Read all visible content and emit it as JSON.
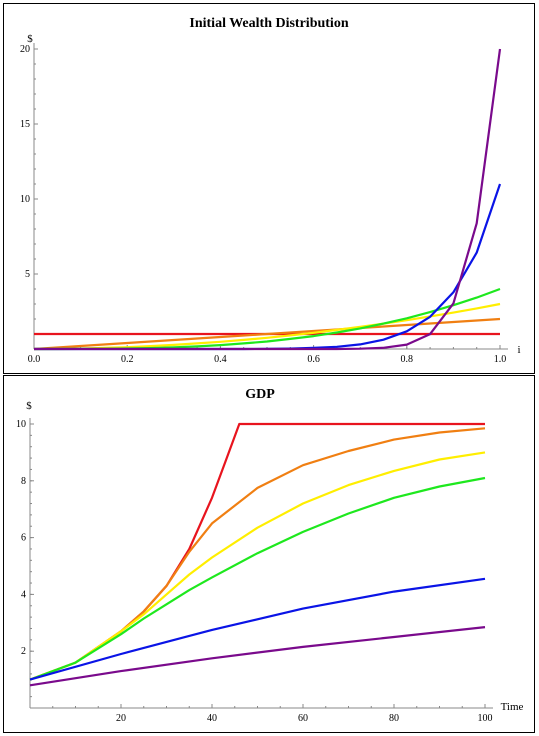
{
  "chart_data": [
    {
      "type": "line",
      "title": "Initial Wealth Distribution",
      "xlabel": "i",
      "ylabel": "$",
      "xlim": [
        0,
        1
      ],
      "ylim": [
        0,
        20
      ],
      "xticks": [
        "0.0",
        "0.2",
        "0.4",
        "0.6",
        "0.8",
        "1.0"
      ],
      "yticks": [
        "5",
        "10",
        "15",
        "20"
      ],
      "grid": false,
      "x": [
        0.0,
        0.05,
        0.1,
        0.15,
        0.2,
        0.25,
        0.3,
        0.35,
        0.4,
        0.45,
        0.5,
        0.55,
        0.6,
        0.65,
        0.7,
        0.75,
        0.8,
        0.85,
        0.9,
        0.95,
        1.0
      ],
      "series": [
        {
          "color": "#e8141e",
          "values": [
            1,
            1,
            1,
            1,
            1,
            1,
            1,
            1,
            1,
            1,
            1,
            1,
            1,
            1,
            1,
            1,
            1,
            1,
            1,
            1,
            1
          ]
        },
        {
          "color": "#f07f12",
          "values": [
            0,
            0.1,
            0.2,
            0.3,
            0.4,
            0.5,
            0.6,
            0.7,
            0.8,
            0.9,
            1.0,
            1.1,
            1.2,
            1.3,
            1.4,
            1.5,
            1.6,
            1.7,
            1.8,
            1.9,
            2.0
          ]
        },
        {
          "color": "#ffee00",
          "values": [
            0,
            0.008,
            0.03,
            0.07,
            0.12,
            0.19,
            0.27,
            0.37,
            0.48,
            0.61,
            0.75,
            0.91,
            1.08,
            1.27,
            1.47,
            1.69,
            1.92,
            2.17,
            2.43,
            2.71,
            3.0
          ]
        },
        {
          "color": "#1ee81e",
          "values": [
            0,
            0.0005,
            0.004,
            0.014,
            0.032,
            0.06,
            0.11,
            0.17,
            0.26,
            0.37,
            0.5,
            0.67,
            0.86,
            1.1,
            1.37,
            1.69,
            2.05,
            2.46,
            2.92,
            3.43,
            4.0
          ]
        },
        {
          "color": "#0a14e6",
          "values": [
            0,
            0,
            0,
            0,
            0,
            0,
            0,
            0,
            0.001,
            0.003,
            0.01,
            0.03,
            0.07,
            0.15,
            0.31,
            0.62,
            1.18,
            2.15,
            3.78,
            6.43,
            11.0
          ]
        },
        {
          "color": "#7a0a8c",
          "values": [
            0,
            0,
            0,
            0,
            0,
            0,
            0,
            0,
            0,
            0,
            0,
            0,
            0,
            0,
            0.02,
            0.08,
            0.29,
            0.99,
            3.04,
            8.38,
            20.0
          ]
        }
      ]
    },
    {
      "type": "line",
      "title": "GDP",
      "xlabel": "Time",
      "ylabel": "$",
      "xlim": [
        0,
        100
      ],
      "ylim": [
        0,
        10
      ],
      "xticks": [
        "20",
        "40",
        "60",
        "80",
        "100"
      ],
      "yticks": [
        "2",
        "4",
        "6",
        "8",
        "10"
      ],
      "grid": false,
      "series": [
        {
          "color": "#e8141e",
          "points": [
            [
              0,
              1
            ],
            [
              10,
              1.6
            ],
            [
              20,
              2.7
            ],
            [
              25,
              3.4
            ],
            [
              30,
              4.3
            ],
            [
              35,
              5.6
            ],
            [
              40,
              7.4
            ],
            [
              43,
              8.7
            ],
            [
              46,
              10.0
            ],
            [
              100,
              10.0
            ]
          ]
        },
        {
          "color": "#f07f12",
          "points": [
            [
              0,
              1
            ],
            [
              10,
              1.6
            ],
            [
              20,
              2.7
            ],
            [
              25,
              3.4
            ],
            [
              30,
              4.3
            ],
            [
              35,
              5.5
            ],
            [
              40,
              6.5
            ],
            [
              50,
              7.75
            ],
            [
              60,
              8.55
            ],
            [
              70,
              9.05
            ],
            [
              80,
              9.45
            ],
            [
              90,
              9.7
            ],
            [
              100,
              9.85
            ]
          ]
        },
        {
          "color": "#ffee00",
          "points": [
            [
              0,
              1
            ],
            [
              10,
              1.6
            ],
            [
              20,
              2.7
            ],
            [
              25,
              3.3
            ],
            [
              30,
              4.0
            ],
            [
              35,
              4.7
            ],
            [
              40,
              5.3
            ],
            [
              50,
              6.35
            ],
            [
              60,
              7.2
            ],
            [
              70,
              7.85
            ],
            [
              80,
              8.35
            ],
            [
              90,
              8.75
            ],
            [
              100,
              9.0
            ]
          ]
        },
        {
          "color": "#1ee81e",
          "points": [
            [
              0,
              1
            ],
            [
              10,
              1.6
            ],
            [
              20,
              2.6
            ],
            [
              25,
              3.15
            ],
            [
              30,
              3.65
            ],
            [
              35,
              4.15
            ],
            [
              40,
              4.6
            ],
            [
              50,
              5.45
            ],
            [
              60,
              6.2
            ],
            [
              70,
              6.85
            ],
            [
              80,
              7.4
            ],
            [
              90,
              7.8
            ],
            [
              100,
              8.1
            ]
          ]
        },
        {
          "color": "#0a14e6",
          "points": [
            [
              0,
              1
            ],
            [
              20,
              1.9
            ],
            [
              40,
              2.75
            ],
            [
              60,
              3.5
            ],
            [
              80,
              4.1
            ],
            [
              100,
              4.55
            ]
          ]
        },
        {
          "color": "#7a0a8c",
          "points": [
            [
              0,
              0.8
            ],
            [
              20,
              1.3
            ],
            [
              40,
              1.75
            ],
            [
              60,
              2.15
            ],
            [
              80,
              2.5
            ],
            [
              100,
              2.85
            ]
          ]
        }
      ]
    }
  ]
}
